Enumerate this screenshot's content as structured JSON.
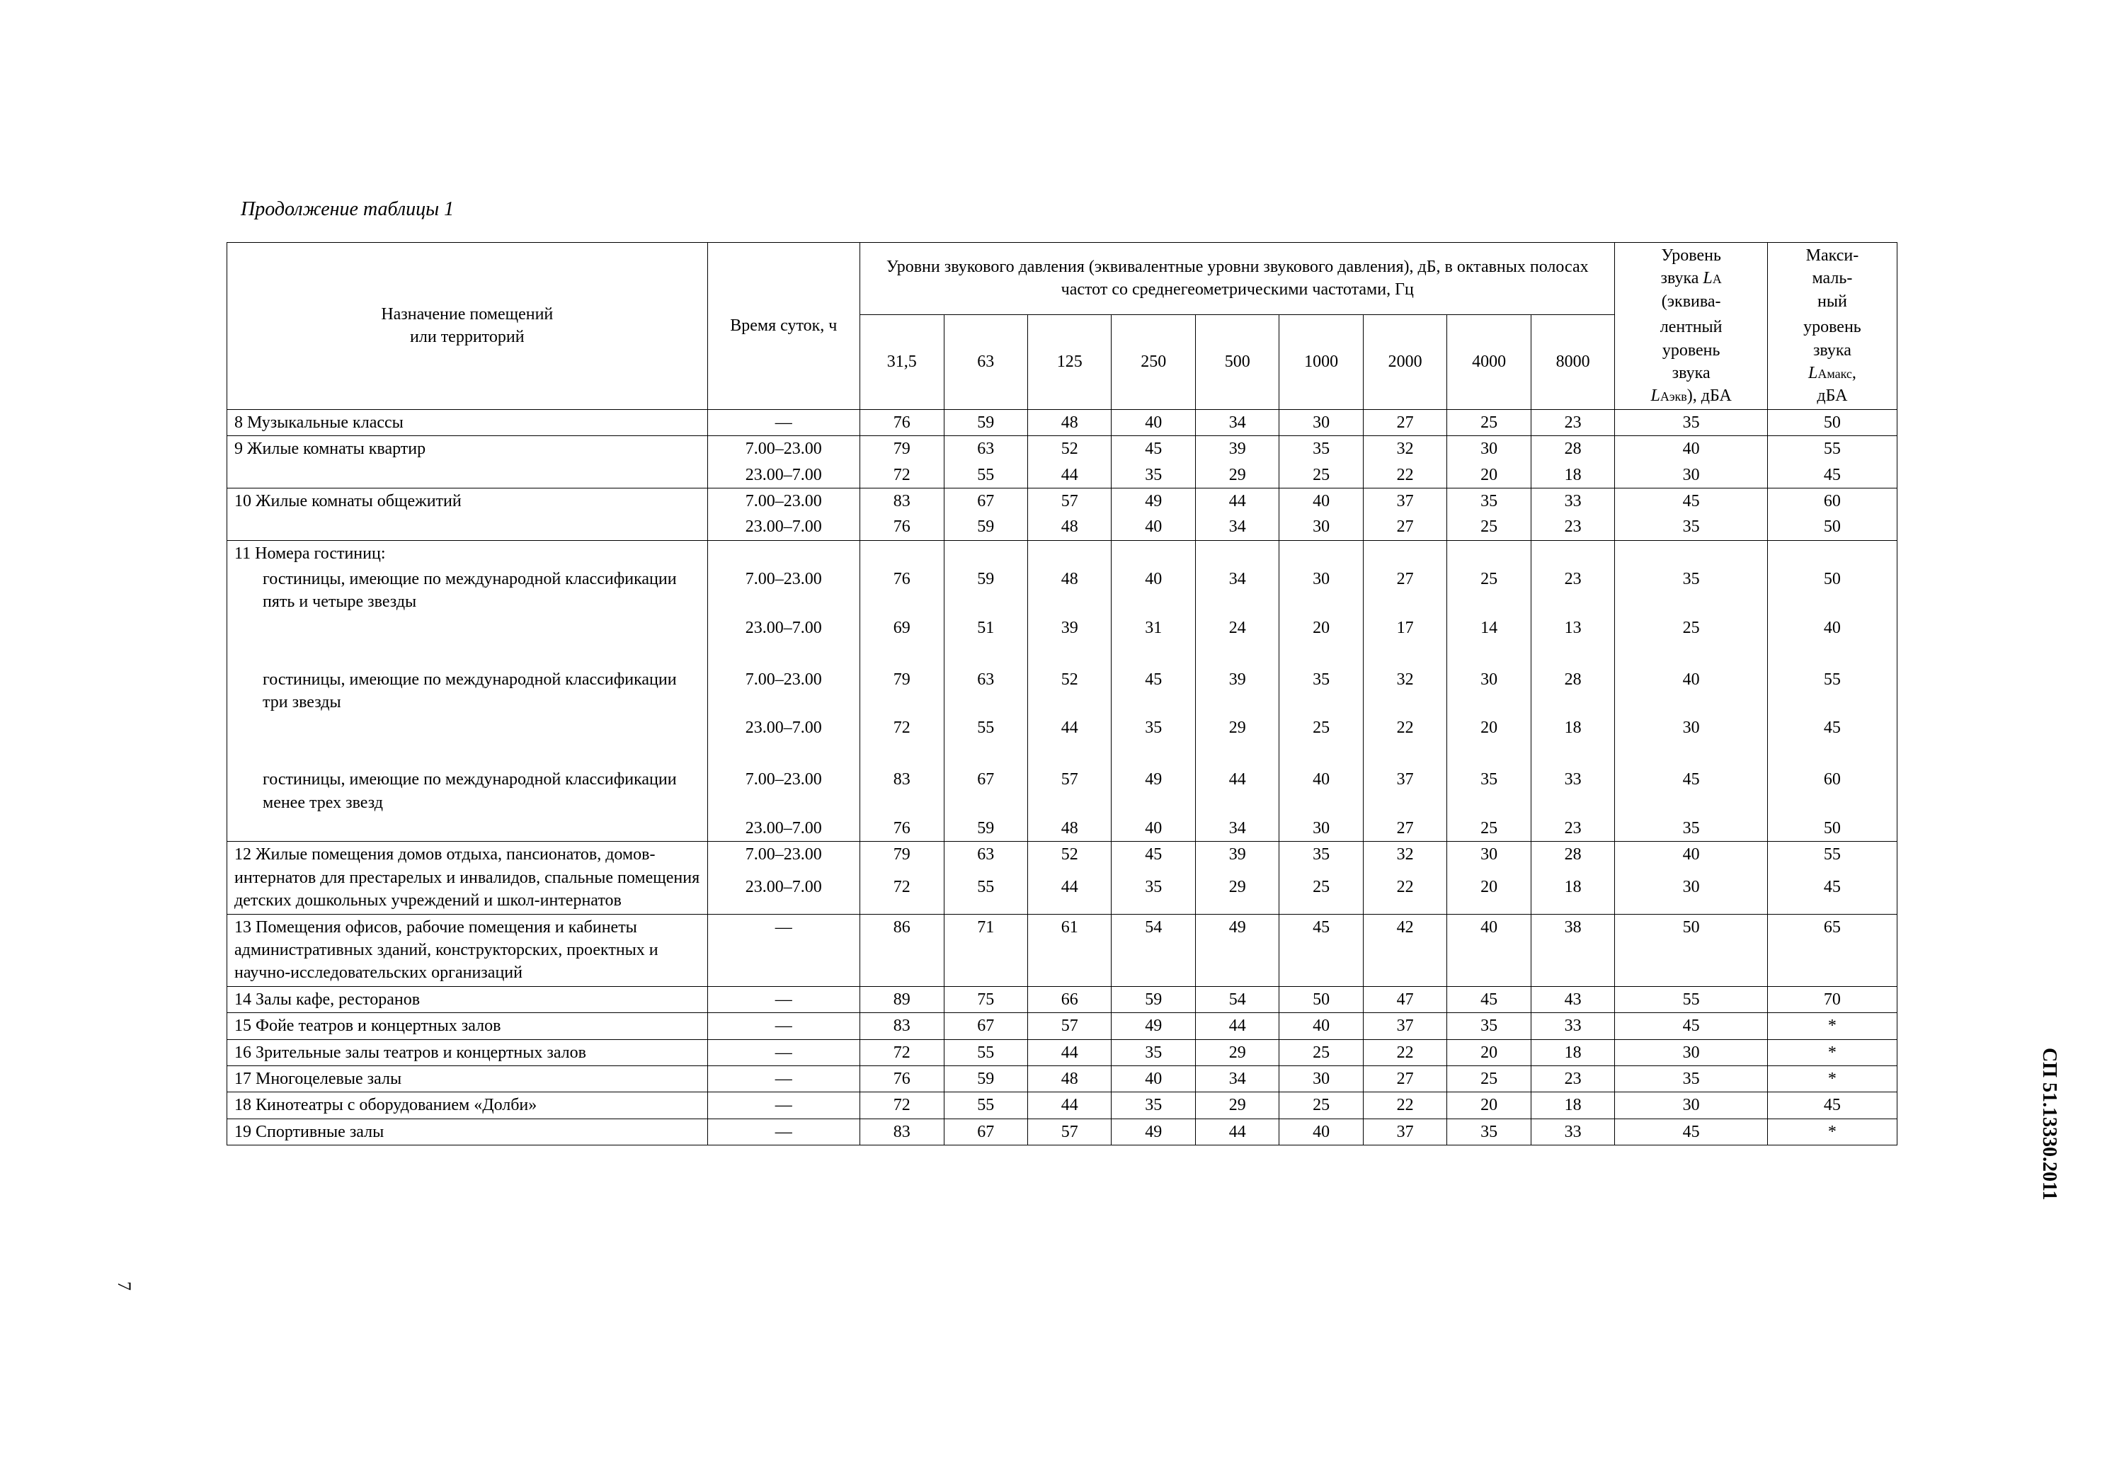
{
  "caption": "Продолжение таблицы 1",
  "doc_code": "СП 51.13330.2011",
  "page_number": "7",
  "headers": {
    "col_name": "Назначение помещений\nили территорий",
    "col_time": "Время  суток, ч",
    "freq_group": "Уровни звукового давления (эквивалентные уровни звукового давления), дБ,  в октавных полосах частот со среднегеометрическими  частотами, Гц",
    "freq_labels": [
      "31,5",
      "63",
      "125",
      "250",
      "500",
      "1000",
      "2000",
      "4000",
      "8000"
    ],
    "la_line1": "Уровень",
    "la_line2_pre": "звука ",
    "la_line2_sym": "L",
    "la_line2_sub": "A",
    "la_line3": "(эквива-",
    "la_line4": "лентный",
    "la_line5": "уровень",
    "la_line6": "звука",
    "la_line7_sym": "L",
    "la_line7_sub": "Аэкв",
    "la_line7_rest": "), дБА",
    "lamax_l1": "Макси-",
    "lamax_l2": "маль-",
    "lamax_l3": "ный",
    "lamax_l4": "уровень",
    "lamax_l5": "звука",
    "lamax_sym": "L",
    "lamax_sub": "Амакс",
    "lamax_l6": ",",
    "lamax_l7": "дБА"
  },
  "dash": "—",
  "rows": [
    {
      "name": "8  Музыкальные классы",
      "time": "—",
      "v": [
        "76",
        "59",
        "48",
        "40",
        "34",
        "30",
        "27",
        "25",
        "23"
      ],
      "la": "35",
      "lmax": "50"
    },
    {
      "name": "9 Жилые комнаты квартир",
      "time": "7.00–23.00",
      "v": [
        "79",
        "63",
        "52",
        "45",
        "39",
        "35",
        "32",
        "30",
        "28"
      ],
      "la": "40",
      "lmax": "55",
      "noTopBorder": false,
      "openBottom": true
    },
    {
      "name": "",
      "time": "23.00–7.00",
      "v": [
        "72",
        "55",
        "44",
        "35",
        "29",
        "25",
        "22",
        "20",
        "18"
      ],
      "la": "30",
      "lmax": "45",
      "openTop": true
    },
    {
      "name": "10 Жилые комнаты общежитий",
      "time": "7.00–23.00",
      "v": [
        "83",
        "67",
        "57",
        "49",
        "44",
        "40",
        "37",
        "35",
        "33"
      ],
      "la": "45",
      "lmax": "60",
      "openBottom": true
    },
    {
      "name": "",
      "time": "23.00–7.00",
      "v": [
        "76",
        "59",
        "48",
        "40",
        "34",
        "30",
        "27",
        "25",
        "23"
      ],
      "la": "35",
      "lmax": "50",
      "openTop": true
    },
    {
      "name": "11 Номера гостиниц:",
      "time": "",
      "v": [
        "",
        "",
        "",
        "",
        "",
        "",
        "",
        "",
        ""
      ],
      "la": "",
      "lmax": "",
      "openBottom": true
    },
    {
      "name": "гостиницы, имеющие по международной классификации пять и четыре звезды",
      "indent": true,
      "time": "7.00–23.00",
      "v": [
        "76",
        "59",
        "48",
        "40",
        "34",
        "30",
        "27",
        "25",
        "23"
      ],
      "la": "35",
      "lmax": "50",
      "openTop": true,
      "openBottom": true
    },
    {
      "name": "",
      "time": "23.00–7.00",
      "v": [
        "69",
        "51",
        "39",
        "31",
        "24",
        "20",
        "17",
        "14",
        "13"
      ],
      "la": "25",
      "lmax": "40",
      "openTop": true,
      "openBottom": true
    },
    {
      "name": " ",
      "time": "",
      "v": [
        "",
        "",
        "",
        "",
        "",
        "",
        "",
        "",
        ""
      ],
      "la": "",
      "lmax": "",
      "openTop": true,
      "openBottom": true,
      "spacer": true
    },
    {
      "name": "гостиницы, имеющие по международной классификации три звезды",
      "indent": true,
      "time": "7.00–23.00",
      "v": [
        "79",
        "63",
        "52",
        "45",
        "39",
        "35",
        "32",
        "30",
        "28"
      ],
      "la": "40",
      "lmax": "55",
      "openTop": true,
      "openBottom": true
    },
    {
      "name": "",
      "time": "23.00–7.00",
      "v": [
        "72",
        "55",
        "44",
        "35",
        "29",
        "25",
        "22",
        "20",
        "18"
      ],
      "la": "30",
      "lmax": "45",
      "openTop": true,
      "openBottom": true
    },
    {
      "name": " ",
      "time": "",
      "v": [
        "",
        "",
        "",
        "",
        "",
        "",
        "",
        "",
        ""
      ],
      "la": "",
      "lmax": "",
      "openTop": true,
      "openBottom": true,
      "spacer": true
    },
    {
      "name": "гостиницы, имеющие по международной классификации  менее трех звезд",
      "indent": true,
      "time": "7.00–23.00",
      "v": [
        "83",
        "67",
        "57",
        "49",
        "44",
        "40",
        "37",
        "35",
        "33"
      ],
      "la": "45",
      "lmax": "60",
      "openTop": true,
      "openBottom": true
    },
    {
      "name": "",
      "time": "23.00–7.00",
      "v": [
        "76",
        "59",
        "48",
        "40",
        "34",
        "30",
        "27",
        "25",
        "23"
      ],
      "la": "35",
      "lmax": "50",
      "openTop": true
    },
    {
      "name": "12 Жилые помещения домов отдыха, пансионатов, домов-интернатов для престарелых и инвалидов, спальные помещения детских дошкольных учреждений и школ-интернатов",
      "time": "7.00–23.00",
      "v": [
        "79",
        "63",
        "52",
        "45",
        "39",
        "35",
        "32",
        "30",
        "28"
      ],
      "la": "40",
      "lmax": "55",
      "openBottom": true,
      "firstLineOnly": true
    },
    {
      "name": "",
      "time": "23.00–7.00",
      "v": [
        "72",
        "55",
        "44",
        "35",
        "29",
        "25",
        "22",
        "20",
        "18"
      ],
      "la": "30",
      "lmax": "45",
      "openTop": true,
      "openBottom": true,
      "extraName": true
    },
    {
      "name": "",
      "time": "",
      "v": [
        "",
        "",
        "",
        "",
        "",
        "",
        "",
        "",
        ""
      ],
      "la": "",
      "lmax": "",
      "openTop": true,
      "openBottom": true,
      "spacer": true
    },
    {
      "name": "",
      "time": "",
      "v": [
        "",
        "",
        "",
        "",
        "",
        "",
        "",
        "",
        ""
      ],
      "la": "",
      "lmax": "",
      "openTop": true,
      "spacer": true
    },
    {
      "name": "13 Помещения офисов, рабочие помещения и кабинеты административных зданий, конструкторских, проектных и научно-исследовательских организаций",
      "time": "—",
      "v": [
        "86",
        "71",
        "61",
        "54",
        "49",
        "45",
        "42",
        "40",
        "38"
      ],
      "la": "50",
      "lmax": "65"
    },
    {
      "name": "14 Залы кафе, ресторанов",
      "time": "—",
      "v": [
        "89",
        "75",
        "66",
        "59",
        "54",
        "50",
        "47",
        "45",
        "43"
      ],
      "la": "55",
      "lmax": "70"
    },
    {
      "name": "15 Фойе театров и концертных залов",
      "time": "—",
      "v": [
        "83",
        "67",
        "57",
        "49",
        "44",
        "40",
        "37",
        "35",
        "33"
      ],
      "la": "45",
      "lmax": "*"
    },
    {
      "name": "16 Зрительные залы театров и концертных залов",
      "time": "—",
      "v": [
        "72",
        "55",
        "44",
        "35",
        "29",
        "25",
        "22",
        "20",
        "18"
      ],
      "la": "30",
      "lmax": "*"
    },
    {
      "name": "17 Многоцелевые залы",
      "time": "—",
      "v": [
        "76",
        "59",
        "48",
        "40",
        "34",
        "30",
        "27",
        "25",
        "23"
      ],
      "la": "35",
      "lmax": "*"
    },
    {
      "name": "18 Кинотеатры с оборудованием «Долби»",
      "time": "—",
      "v": [
        "72",
        "55",
        "44",
        "35",
        "29",
        "25",
        "22",
        "20",
        "18"
      ],
      "la": "30",
      "lmax": "45"
    },
    {
      "name": "19 Спортивные залы",
      "time": "—",
      "v": [
        "83",
        "67",
        "57",
        "49",
        "44",
        "40",
        "37",
        "35",
        "33"
      ],
      "la": "45",
      "lmax": "*"
    }
  ]
}
